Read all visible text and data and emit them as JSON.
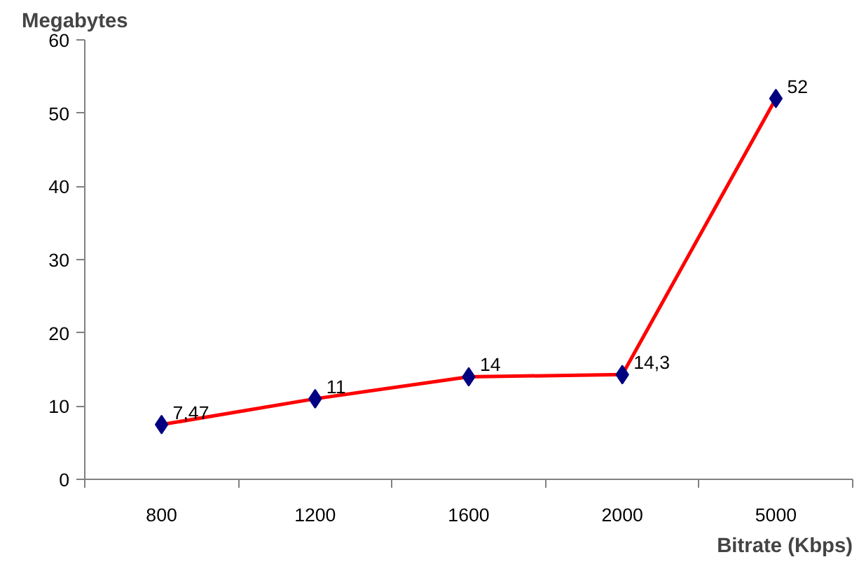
{
  "chart_data": {
    "type": "line",
    "ylabel": "Megabytes",
    "xlabel": "Bitrate (Kbps)",
    "categories": [
      "800",
      "1200",
      "1600",
      "2000",
      "5000"
    ],
    "series": [
      {
        "color": "#ff0000",
        "colors": [
          "#000080",
          "#000080",
          "#000080",
          "#000080",
          "#000080"
        ],
        "values": [
          7.47,
          11,
          14,
          14.3,
          52
        ],
        "value_labels": [
          "7,47",
          "11",
          "14",
          "14,3",
          "52"
        ]
      }
    ],
    "ylim": [
      0,
      60
    ],
    "yticks": [
      0,
      10,
      20,
      30,
      40,
      50,
      60
    ],
    "grid": false,
    "marker": "diamond",
    "line_style": "solid"
  }
}
